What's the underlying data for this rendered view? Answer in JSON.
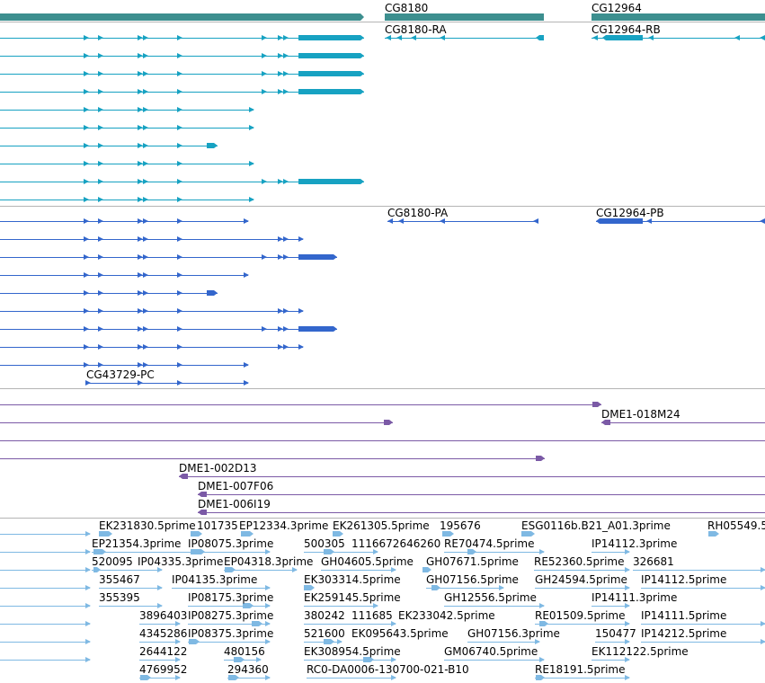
{
  "colors": {
    "gene": "#3d8f8f",
    "rna": "#17a2c2",
    "protein": "#3366cc",
    "clone": "#7b5aa6",
    "est": "#7fb9e3",
    "separator": "#b4b4b4"
  },
  "genes": {
    "items": [
      {
        "label": ""
      },
      {
        "label": "CG8180"
      },
      {
        "label": "CG12964"
      }
    ]
  },
  "transcripts": {
    "named": [
      {
        "label": "CG8180-RA"
      },
      {
        "label": "CG12964-RB"
      }
    ]
  },
  "proteins": {
    "named": [
      {
        "label": "CG8180-PA"
      },
      {
        "label": "CG12964-PB"
      },
      {
        "label": "CG43729-PC"
      }
    ]
  },
  "clones": {
    "labels": [
      {
        "label": "DME1-018M24"
      },
      {
        "label": "DME1-002D13"
      },
      {
        "label": "DME1-007F06"
      },
      {
        "label": "DME1-006I19"
      }
    ]
  },
  "ests": {
    "labels": [
      {
        "label": "EK231830.5prime"
      },
      {
        "label": "101735"
      },
      {
        "label": "EP12334.3prime"
      },
      {
        "label": "EK261305.5prime"
      },
      {
        "label": "195676"
      },
      {
        "label": "ESG0116b.B21_A01.3prime"
      },
      {
        "label": "RH05549.5"
      },
      {
        "label": "EP21354.3prime"
      },
      {
        "label": "IP08075.3prime"
      },
      {
        "label": "500305"
      },
      {
        "label": "1116672646260"
      },
      {
        "label": "RE70474.5prime"
      },
      {
        "label": "IP14112.3prime"
      },
      {
        "label": "520095"
      },
      {
        "label": "IP04335.3prime"
      },
      {
        "label": "EP04318.3prime"
      },
      {
        "label": "GH04605.5prime"
      },
      {
        "label": "GH07671.5prime"
      },
      {
        "label": "RE52360.5prime"
      },
      {
        "label": "326681"
      },
      {
        "label": "355467"
      },
      {
        "label": "IP04135.3prime"
      },
      {
        "label": "EK303314.5prime"
      },
      {
        "label": "GH07156.5prime"
      },
      {
        "label": "GH24594.5prime"
      },
      {
        "label": "IP14112.5prime"
      },
      {
        "label": "355395"
      },
      {
        "label": "IP08175.3prime"
      },
      {
        "label": "EK259145.5prime"
      },
      {
        "label": "GH12556.5prime"
      },
      {
        "label": "IP14111.3prime"
      },
      {
        "label": "3896403"
      },
      {
        "label": "IP08275.3prime"
      },
      {
        "label": "380242"
      },
      {
        "label": "111685"
      },
      {
        "label": "EK233042.5prime"
      },
      {
        "label": "RE01509.5prime"
      },
      {
        "label": "IP14111.5prime"
      },
      {
        "label": "4345286"
      },
      {
        "label": "IP08375.3prime"
      },
      {
        "label": "521600"
      },
      {
        "label": "EK095643.5prime"
      },
      {
        "label": "GH07156.3prime"
      },
      {
        "label": "150477"
      },
      {
        "label": "IP14212.5prime"
      },
      {
        "label": "2644122"
      },
      {
        "label": "480156"
      },
      {
        "label": "EK308954.5prime"
      },
      {
        "label": "GM06740.5prime"
      },
      {
        "label": "EK112122.5prime"
      },
      {
        "label": "4769952"
      },
      {
        "label": "294360"
      },
      {
        "label": "RC0-DA0006-130700-021-B10"
      },
      {
        "label": "RE18191.5prime"
      }
    ]
  }
}
